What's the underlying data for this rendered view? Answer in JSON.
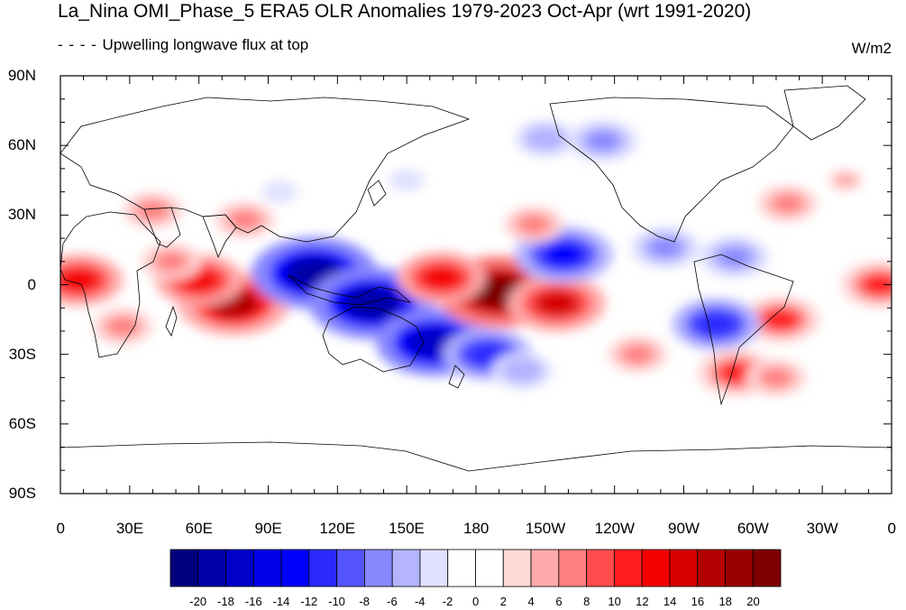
{
  "title": "La_Nina OMI_Phase_5 ERA5 OLR Anomalies 1979-2023 Oct-Apr (wrt 1991-2020)",
  "subtitle": "Upwelling longwave flux at top",
  "units": "W/m2",
  "map": {
    "projection": "cylindrical-equidistant",
    "lon_range": [
      0,
      360
    ],
    "lat_range": [
      -90,
      90
    ],
    "lat_labels": [
      "90N",
      "60N",
      "30N",
      "0",
      "30S",
      "60S",
      "90S"
    ],
    "lon_labels": [
      "0",
      "30E",
      "60E",
      "90E",
      "120E",
      "150E",
      "180",
      "150W",
      "120W",
      "90W",
      "60W",
      "30W",
      "0"
    ]
  },
  "colorbar": {
    "levels": [
      "-20",
      "-18",
      "-16",
      "-14",
      "-12",
      "-10",
      "-8",
      "-6",
      "-4",
      "-2",
      "0",
      "2",
      "4",
      "6",
      "8",
      "10",
      "12",
      "14",
      "16",
      "18",
      "20"
    ],
    "colors": [
      "#00007d",
      "#0000a8",
      "#0000c8",
      "#0000e6",
      "#0000ff",
      "#2a2aff",
      "#5555ff",
      "#8888ff",
      "#b4b4ff",
      "#e0e0ff",
      "#ffffff",
      "#ffffff",
      "#ffd8d8",
      "#ffaaaa",
      "#ff7e7e",
      "#ff4c4c",
      "#ff1e1e",
      "#f50000",
      "#d70000",
      "#b40000",
      "#9a0000",
      "#7d0000"
    ]
  },
  "anomalies": [
    {
      "lon": 75,
      "lat": -8,
      "value": 17
    },
    {
      "lon": 60,
      "lat": 2,
      "value": 12
    },
    {
      "lon": 8,
      "lat": 2,
      "value": 12
    },
    {
      "lon": 27,
      "lat": -18,
      "value": 6
    },
    {
      "lon": 48,
      "lat": 10,
      "value": 6
    },
    {
      "lon": 40,
      "lat": 32,
      "value": 6
    },
    {
      "lon": 80,
      "lat": 28,
      "value": 6
    },
    {
      "lon": 110,
      "lat": 5,
      "value": -20
    },
    {
      "lon": 135,
      "lat": -8,
      "value": -20
    },
    {
      "lon": 162,
      "lat": -25,
      "value": -18
    },
    {
      "lon": 185,
      "lat": -30,
      "value": -12
    },
    {
      "lon": 200,
      "lat": -37,
      "value": -6
    },
    {
      "lon": 190,
      "lat": -3,
      "value": 20
    },
    {
      "lon": 215,
      "lat": -8,
      "value": 14
    },
    {
      "lon": 165,
      "lat": 3,
      "value": 12
    },
    {
      "lon": 218,
      "lat": 13,
      "value": -14
    },
    {
      "lon": 205,
      "lat": 26,
      "value": 6
    },
    {
      "lon": 262,
      "lat": 16,
      "value": -8
    },
    {
      "lon": 292,
      "lat": 12,
      "value": -8
    },
    {
      "lon": 312,
      "lat": -15,
      "value": 10
    },
    {
      "lon": 284,
      "lat": -17,
      "value": -12
    },
    {
      "lon": 293,
      "lat": -38,
      "value": 10
    },
    {
      "lon": 355,
      "lat": 0,
      "value": 10
    },
    {
      "lon": 250,
      "lat": -30,
      "value": 6
    },
    {
      "lon": 235,
      "lat": 62,
      "value": -8
    },
    {
      "lon": 210,
      "lat": 63,
      "value": -6
    },
    {
      "lon": 95,
      "lat": 40,
      "value": -4
    },
    {
      "lon": 315,
      "lat": 35,
      "value": 6
    },
    {
      "lon": 340,
      "lat": 45,
      "value": 4
    },
    {
      "lon": 150,
      "lat": 45,
      "value": -4
    },
    {
      "lon": 310,
      "lat": -40,
      "value": 6
    }
  ]
}
